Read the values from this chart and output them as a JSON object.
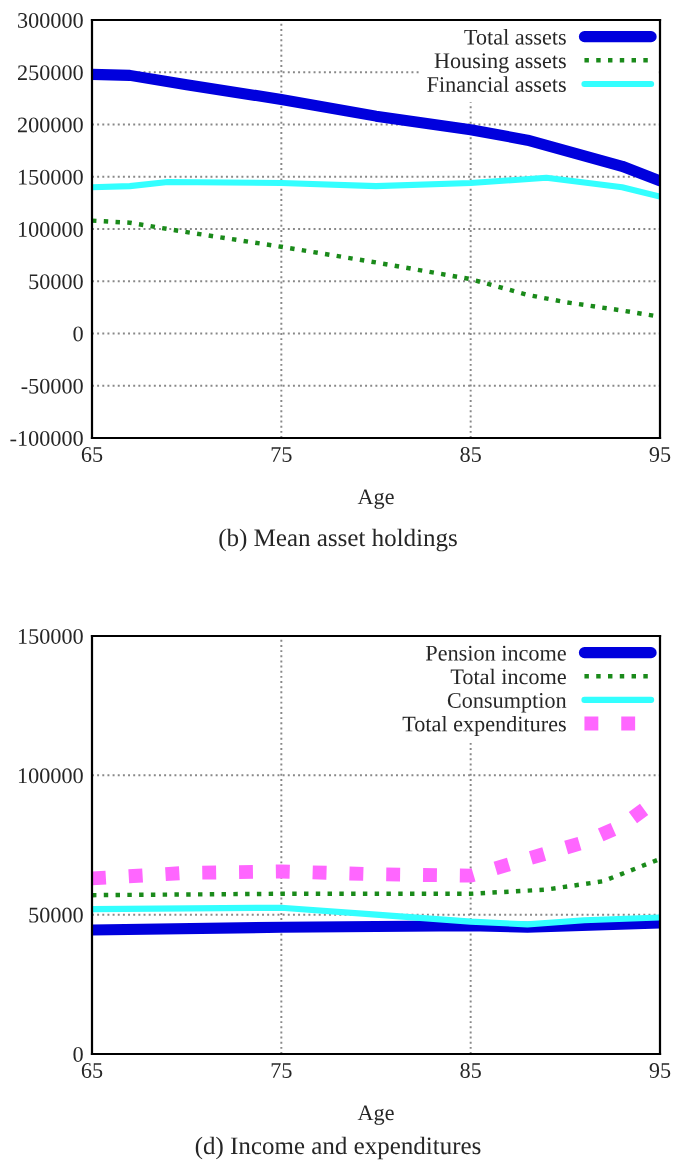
{
  "chart_data": [
    {
      "type": "line",
      "xlabel": "Age",
      "annotations": [
        "(b) Mean asset holdings"
      ],
      "xlim": [
        65,
        95
      ],
      "xticks": [
        65,
        75,
        85,
        95
      ],
      "ylim": [
        -100000,
        300000
      ],
      "yticks": [
        -100000,
        -50000,
        0,
        50000,
        100000,
        150000,
        200000,
        250000,
        300000
      ],
      "grid": true,
      "legend": "top right",
      "series": [
        {
          "name": "Total assets",
          "color": "#0000dd",
          "line_style": "solid",
          "x": [
            65,
            67,
            70,
            75,
            80,
            85,
            88,
            90,
            93,
            95
          ],
          "values": [
            248000,
            247000,
            238000,
            224000,
            208000,
            195000,
            185000,
            175000,
            160000,
            146000
          ]
        },
        {
          "name": "Housing assets",
          "color": "#1a8a1a",
          "line_style": "dotted",
          "x": [
            65,
            67,
            70,
            75,
            80,
            85,
            88,
            90,
            93,
            95
          ],
          "values": [
            108000,
            106000,
            97000,
            83000,
            68000,
            52000,
            37000,
            30000,
            22000,
            16000
          ]
        },
        {
          "name": "Financial assets",
          "color": "#33ffff",
          "line_style": "solid",
          "x": [
            65,
            67,
            69,
            75,
            80,
            85,
            89,
            93,
            95
          ],
          "values": [
            140000,
            141000,
            145000,
            144000,
            141000,
            144000,
            149000,
            140000,
            131000
          ]
        }
      ]
    },
    {
      "type": "line",
      "xlabel": "Age",
      "annotations": [
        "(d) Income and expenditures"
      ],
      "xlim": [
        65,
        95
      ],
      "xticks": [
        65,
        75,
        85,
        95
      ],
      "ylim": [
        0,
        150000
      ],
      "yticks": [
        0,
        50000,
        100000,
        150000
      ],
      "grid": true,
      "legend": "top right",
      "series": [
        {
          "name": "Pension income",
          "color": "#0000dd",
          "line_style": "solid",
          "x": [
            65,
            75,
            85,
            88,
            95
          ],
          "values": [
            44500,
            45500,
            46000,
            45500,
            47000
          ]
        },
        {
          "name": "Total income",
          "color": "#1a8a1a",
          "line_style": "dotted",
          "x": [
            65,
            75,
            85,
            89,
            92,
            95
          ],
          "values": [
            57000,
            57500,
            57500,
            59000,
            62000,
            70000
          ]
        },
        {
          "name": "Consumption",
          "color": "#33ffff",
          "line_style": "solid",
          "x": [
            65,
            75,
            80,
            85,
            88,
            91,
            95
          ],
          "values": [
            52000,
            52500,
            50000,
            47500,
            46500,
            48000,
            49000
          ]
        },
        {
          "name": "Total expenditures",
          "color": "#ff66ff",
          "line_style": "dotted",
          "x": [
            65,
            70,
            75,
            80,
            85,
            88,
            91,
            93,
            95
          ],
          "values": [
            63000,
            65000,
            65500,
            64500,
            64000,
            70000,
            76000,
            82000,
            92000
          ]
        }
      ]
    }
  ]
}
